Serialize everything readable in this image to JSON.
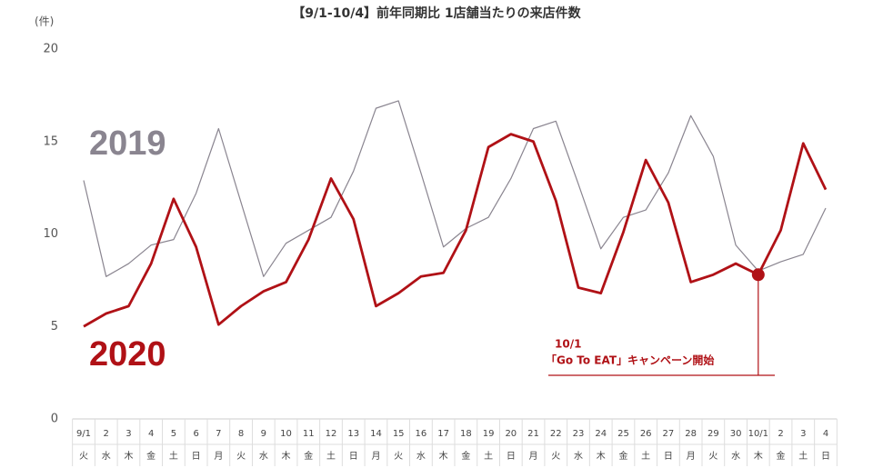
{
  "chart_data": {
    "type": "line",
    "title": "【9/1-10/4】前年同期比 1店舗当たりの来店件数",
    "y_unit": "(件)",
    "categories": [
      "9/1",
      "2",
      "3",
      "4",
      "5",
      "6",
      "7",
      "8",
      "9",
      "10",
      "11",
      "12",
      "13",
      "14",
      "15",
      "16",
      "17",
      "18",
      "19",
      "20",
      "21",
      "22",
      "23",
      "24",
      "25",
      "26",
      "27",
      "28",
      "29",
      "30",
      "10/1",
      "2",
      "3",
      "4"
    ],
    "weekdays": [
      "火",
      "水",
      "木",
      "金",
      "土",
      "日",
      "月",
      "火",
      "水",
      "木",
      "金",
      "土",
      "日",
      "月",
      "火",
      "水",
      "木",
      "金",
      "土",
      "日",
      "月",
      "火",
      "水",
      "木",
      "金",
      "土",
      "日",
      "月",
      "火",
      "水",
      "木",
      "金",
      "土",
      "日"
    ],
    "series": [
      {
        "name": "2019",
        "color": "#8a8590",
        "values": [
          12.9,
          7.7,
          8.4,
          9.4,
          9.7,
          12.2,
          15.7,
          11.7,
          7.7,
          9.5,
          10.2,
          10.9,
          13.4,
          16.8,
          17.2,
          13.3,
          9.3,
          10.3,
          10.9,
          13.0,
          15.7,
          16.1,
          12.7,
          9.2,
          10.9,
          11.3,
          13.3,
          16.4,
          14.2,
          9.4,
          8.0,
          8.5,
          8.9,
          11.4
        ]
      },
      {
        "name": "2020",
        "color": "#b01116",
        "values": [
          5.0,
          5.7,
          6.1,
          8.4,
          11.9,
          9.3,
          5.1,
          6.1,
          6.9,
          7.4,
          9.7,
          13.0,
          10.8,
          6.1,
          6.8,
          7.7,
          7.9,
          10.2,
          14.7,
          15.4,
          15.0,
          11.8,
          7.1,
          6.8,
          10.1,
          14.0,
          11.7,
          7.4,
          7.8,
          8.4,
          7.8,
          10.2,
          14.9,
          12.4
        ]
      }
    ],
    "ylim": [
      0,
      20
    ],
    "yticks": [
      0,
      5,
      10,
      15,
      20
    ],
    "grid": false,
    "annotation": {
      "date": "10/1",
      "text": "「Go To EAT」キャンペーン開始"
    }
  }
}
